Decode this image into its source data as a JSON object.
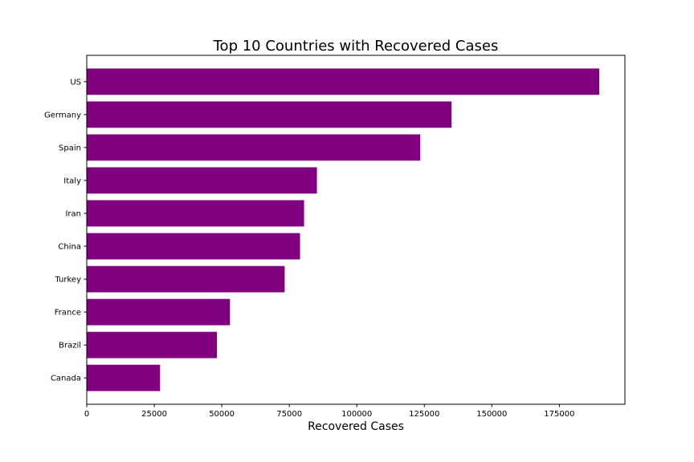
{
  "chart_data": {
    "type": "bar",
    "orientation": "horizontal",
    "title": "Top 10 Countries with Recovered Cases",
    "xlabel": "Recovered Cases",
    "ylabel": "",
    "categories": [
      "US",
      "Germany",
      "Spain",
      "Italy",
      "Iran",
      "China",
      "Turkey",
      "France",
      "Brazil",
      "Canada"
    ],
    "values": [
      189791,
      135100,
      123486,
      85231,
      80475,
      78977,
      73285,
      53036,
      48221,
      27141
    ],
    "xlim": [
      0,
      199280
    ],
    "xticks": [
      0,
      25000,
      50000,
      75000,
      100000,
      125000,
      150000,
      175000
    ],
    "xtick_labels": [
      "0",
      "25000",
      "50000",
      "75000",
      "100000",
      "125000",
      "150000",
      "175000"
    ],
    "bar_color": "#800080",
    "grid": false,
    "legend": "none"
  }
}
